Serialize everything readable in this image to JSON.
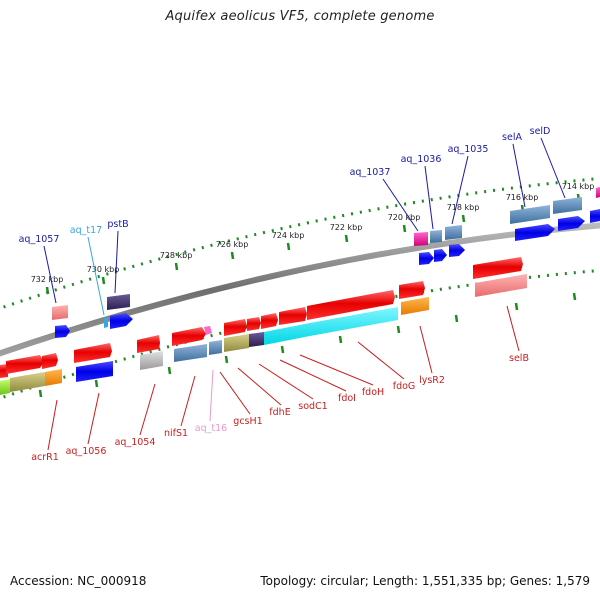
{
  "title": "Aquifex aeolicus VF5, complete genome",
  "footer": {
    "accession": "Accession: NC_000918",
    "summary": "Topology: circular; Length: 1,551,335 bp; Genes: 1,579"
  },
  "colors": {
    "backbone": "#8a8a8a",
    "tick": "#1f8a1f",
    "forward_label": "#1a1aa6",
    "reverse_label": "#c81e1e",
    "trna_label": "#3aa7d9",
    "trna_reverse_label": "#e89ac7"
  },
  "kbp_ticks": [
    "732 kbp",
    "730 kbp",
    "728 kbp",
    "726 kbp",
    "724 kbp",
    "722 kbp",
    "720 kbp",
    "718 kbp",
    "716 kbp",
    "714 kbp"
  ],
  "labels_top": [
    {
      "text": "aq_1057",
      "kind": "cds"
    },
    {
      "text": "aq_t17",
      "kind": "trna"
    },
    {
      "text": "pstB",
      "kind": "cds"
    },
    {
      "text": "aq_1037",
      "kind": "cds"
    },
    {
      "text": "aq_1036",
      "kind": "cds"
    },
    {
      "text": "aq_1035",
      "kind": "cds"
    },
    {
      "text": "selA",
      "kind": "cds"
    },
    {
      "text": "selD",
      "kind": "cds"
    }
  ],
  "labels_bottom": [
    {
      "text": "acrR1",
      "kind": "cds"
    },
    {
      "text": "aq_1056",
      "kind": "cds"
    },
    {
      "text": "aq_1054",
      "kind": "cds"
    },
    {
      "text": "nifS1",
      "kind": "cds"
    },
    {
      "text": "aq_t16",
      "kind": "trna"
    },
    {
      "text": "gcsH1",
      "kind": "cds"
    },
    {
      "text": "fdhE",
      "kind": "cds"
    },
    {
      "text": "sodC1",
      "kind": "cds"
    },
    {
      "text": "fdoI",
      "kind": "cds"
    },
    {
      "text": "fdoH",
      "kind": "cds"
    },
    {
      "text": "fdoG",
      "kind": "cds"
    },
    {
      "text": "lysR2",
      "kind": "cds"
    },
    {
      "text": "selB",
      "kind": "cds"
    }
  ]
}
